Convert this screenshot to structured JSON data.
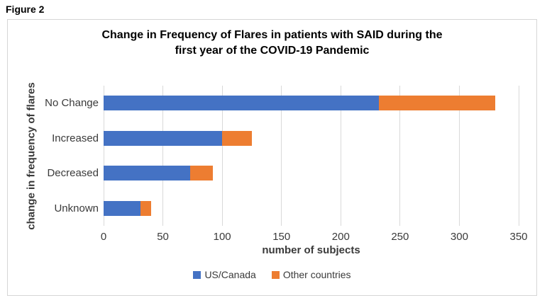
{
  "figure_label": "Figure 2",
  "chart_data": {
    "type": "bar",
    "variant": "horizontal-stacked",
    "title": "Change in Frequency of Flares in patients with SAID during the first year of the COVID-19 Pandemic",
    "title_lines": [
      "Change in Frequency of Flares in patients with SAID during the",
      "first year of the COVID-19 Pandemic"
    ],
    "categories": [
      "No Change",
      "Increased",
      "Decreased",
      "Unknown"
    ],
    "series": [
      {
        "name": "US/Canada",
        "color": "#4472C4",
        "values": [
          232,
          100,
          73,
          31
        ]
      },
      {
        "name": "Other countries",
        "color": "#ED7D31",
        "values": [
          98,
          25,
          19,
          9
        ]
      }
    ],
    "totals": [
      330,
      125,
      92,
      40
    ],
    "xlabel": "number of subjects",
    "ylabel": "change in frequency of flares",
    "xlim": [
      0,
      350
    ],
    "xticks": [
      0,
      50,
      100,
      150,
      200,
      250,
      300,
      350
    ],
    "grid": "vertical",
    "legend_position": "bottom",
    "background": "#ffffff",
    "gridline_color": "#d9d9d9",
    "text_color": "#3a3a3a"
  }
}
